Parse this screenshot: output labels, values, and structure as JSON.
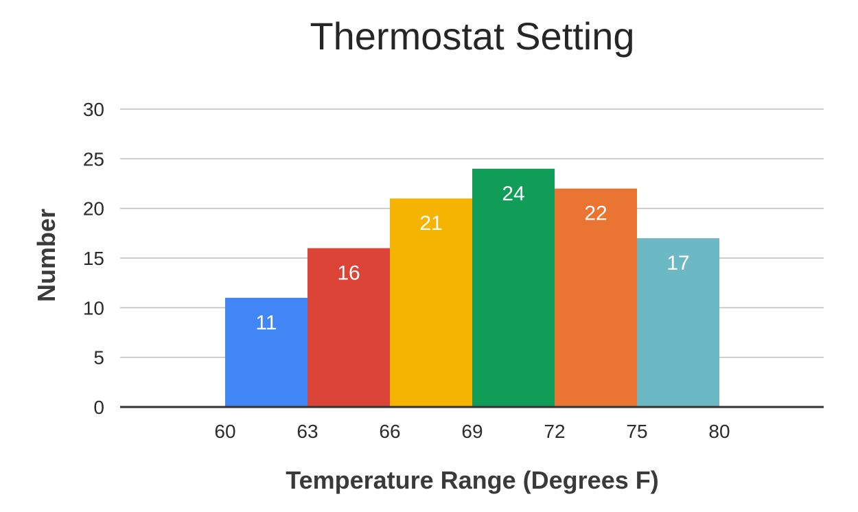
{
  "chart_data": {
    "type": "bar",
    "title": "Thermostat Setting",
    "xlabel": "Temperature Range (Degrees F)",
    "ylabel": "Number",
    "ylim": [
      0,
      30
    ],
    "yticks": [
      "0",
      "5",
      "10",
      "15",
      "20",
      "25",
      "30"
    ],
    "xticks": [
      "60",
      "63",
      "66",
      "69",
      "72",
      "75",
      "80"
    ],
    "bins": [
      {
        "range": [
          "60",
          "63"
        ],
        "value": 11,
        "color": "#4285F4"
      },
      {
        "range": [
          "63",
          "66"
        ],
        "value": 16,
        "color": "#DB4437"
      },
      {
        "range": [
          "66",
          "69"
        ],
        "value": 21,
        "color": "#F4B400"
      },
      {
        "range": [
          "69",
          "72"
        ],
        "value": 24,
        "color": "#0F9D58"
      },
      {
        "range": [
          "72",
          "75"
        ],
        "value": 22,
        "color": "#EA7432"
      },
      {
        "range": [
          "75",
          "80"
        ],
        "value": 17,
        "color": "#6CB9C5"
      }
    ],
    "grid": true,
    "legend": "none"
  }
}
